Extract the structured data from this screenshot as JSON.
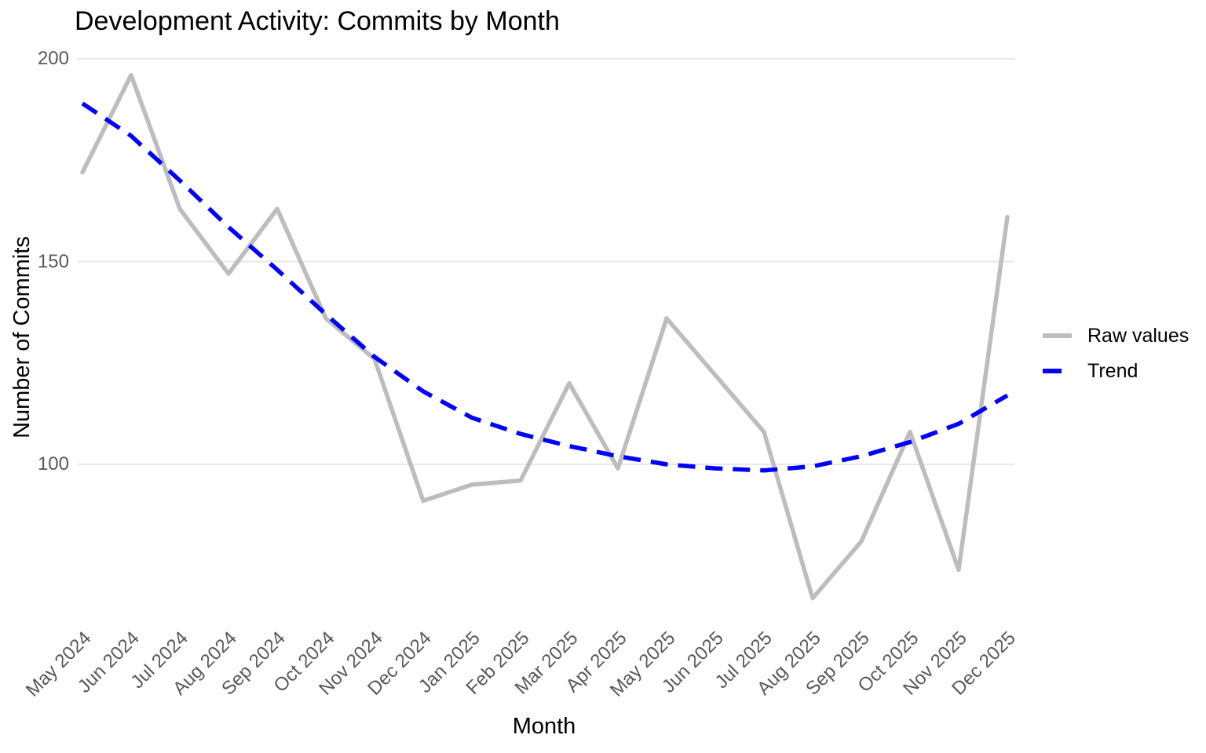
{
  "title": "Development Activity: Commits by Month",
  "axes": {
    "x_label": "Month",
    "y_label": "Number of Commits"
  },
  "legend": {
    "items": [
      {
        "label": "Raw values",
        "color": "#BDBDBD",
        "style": "solid"
      },
      {
        "label": "Trend",
        "color": "#0000FF",
        "style": "dashed"
      }
    ]
  },
  "colors": {
    "background": "#FFFFFF",
    "raw_line": "#BDBDBD",
    "trend_line": "#0000FF",
    "gridline": "#E8E8E8",
    "tick_text": "#595959",
    "title_text": "#000000"
  },
  "chart_data": {
    "type": "line",
    "title": "Development Activity: Commits by Month",
    "xlabel": "Month",
    "ylabel": "Number of Commits",
    "categories": [
      "May 2024",
      "Jun 2024",
      "Jul 2024",
      "Aug 2024",
      "Sep 2024",
      "Oct 2024",
      "Nov 2024",
      "Dec 2024",
      "Jan 2025",
      "Feb 2025",
      "Mar 2025",
      "Apr 2025",
      "May 2025",
      "Jun 2025",
      "Jul 2025",
      "Aug 2025",
      "Sep 2025",
      "Oct 2025",
      "Nov 2025",
      "Dec 2025"
    ],
    "series": [
      {
        "name": "Raw values",
        "color": "#BDBDBD",
        "style": "solid",
        "values": [
          172,
          196,
          163,
          147,
          163,
          136,
          126,
          91,
          95,
          96,
          120,
          99,
          136,
          122,
          108,
          67,
          81,
          108,
          74,
          161
        ]
      },
      {
        "name": "Trend",
        "color": "#0000FF",
        "style": "dashed",
        "values": [
          189,
          181,
          170,
          158.5,
          148,
          137,
          126.5,
          118,
          111.5,
          107.5,
          104.5,
          102,
          100,
          99,
          98.5,
          99.5,
          102,
          105.5,
          110,
          117
        ]
      }
    ],
    "yticks": [
      100,
      150,
      200
    ],
    "ylim": [
      62,
      203
    ],
    "grid": "horizontal-major-only",
    "legend_position": "right-middle"
  }
}
